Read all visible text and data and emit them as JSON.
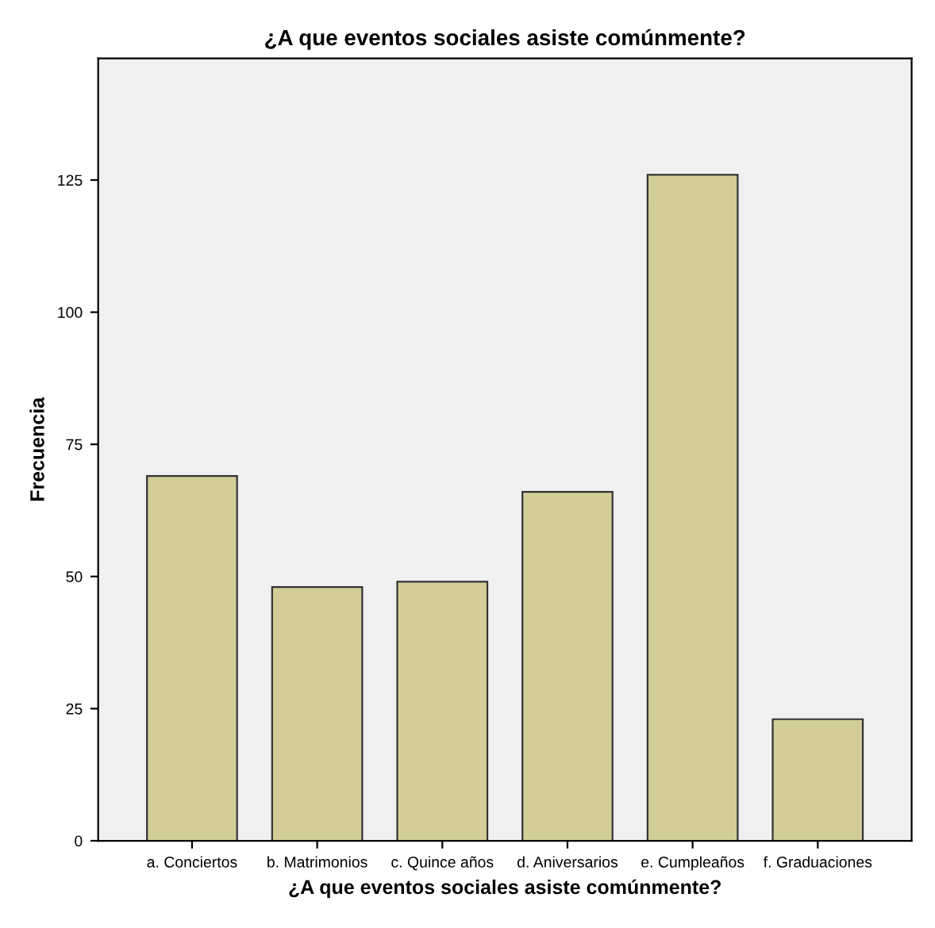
{
  "chart_data": {
    "type": "bar",
    "title": "¿A que eventos sociales asiste comúnmente?",
    "xlabel": "¿A que eventos sociales asiste comúnmente?",
    "ylabel": "Frecuencia",
    "categories": [
      "a. Conciertos",
      "b. Matrimonios",
      "c. Quince años",
      "d. Aniversarios",
      "e. Cumpleaños",
      "f. Graduaciones"
    ],
    "values": [
      69,
      48,
      49,
      66,
      126,
      23
    ],
    "color": "#d3ce98",
    "ylim": [
      0,
      148
    ],
    "yticks": [
      0,
      25,
      50,
      75,
      100,
      125
    ],
    "grid": false,
    "legend": false
  }
}
